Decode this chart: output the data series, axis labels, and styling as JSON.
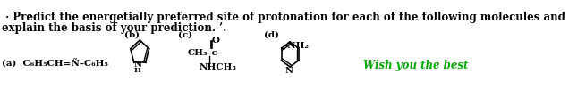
{
  "line1": " · Predict the energetially preferred site of protonation for each of the following molecules and",
  "line2": "explain the basis of your prediction. ’.",
  "label_a": "(a)",
  "formula_a": "C₆H₅CH=Ñ–C₆H₅",
  "label_b": "(b)",
  "label_c": "(c)",
  "formula_c": "CH₃–c",
  "formula_c2": "NHCH₃",
  "label_d": "(d)",
  "wish": "Wish you the best",
  "bg_color": "#ffffff",
  "text_color": "#000000",
  "wish_color": "#00aa00",
  "bold_font": "bold",
  "main_fontsize": 8.5,
  "sub_fontsize": 7.5,
  "wish_fontsize": 8.5
}
